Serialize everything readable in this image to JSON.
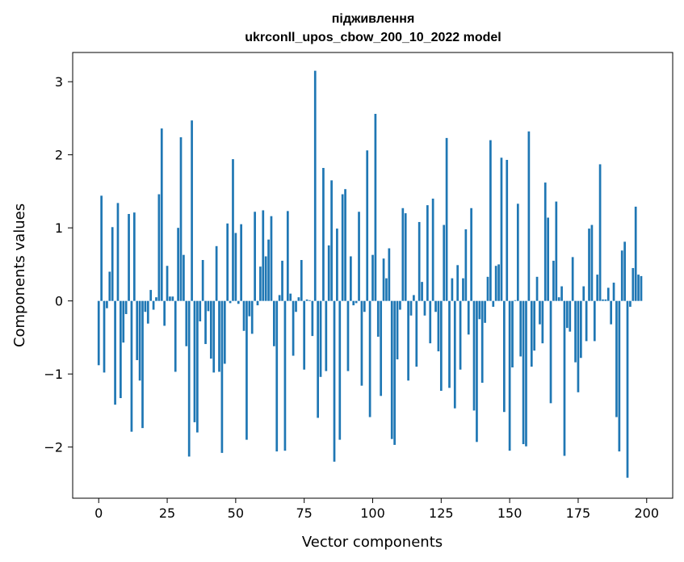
{
  "chart_data": {
    "type": "bar",
    "title_line1": "підживлення",
    "title_line2": "ukrconll_upos_cbow_200_10_2022 model",
    "xlabel": "Vector components",
    "ylabel": "Components values",
    "xlim": [
      -9.5,
      209.5
    ],
    "ylim": [
      -2.7,
      3.4
    ],
    "xticks": [
      0,
      25,
      50,
      75,
      100,
      125,
      150,
      175,
      200
    ],
    "yticks": [
      -2,
      -1,
      0,
      1,
      2,
      3
    ],
    "ytick_labels": [
      "−2",
      "−1",
      "0",
      "1",
      "2",
      "3"
    ],
    "grid": false,
    "bar_color": "#1f77b4",
    "values": [
      -0.88,
      1.44,
      -0.98,
      -0.1,
      0.4,
      1.01,
      -1.42,
      1.34,
      -1.33,
      -0.57,
      -0.18,
      1.19,
      -1.79,
      1.21,
      -0.81,
      -1.09,
      -1.74,
      -0.15,
      -0.31,
      0.15,
      -0.12,
      0.05,
      1.46,
      2.36,
      -0.34,
      0.48,
      0.06,
      0.06,
      -0.97,
      1.0,
      2.24,
      0.63,
      -0.62,
      -2.13,
      2.47,
      -1.66,
      -1.8,
      -0.28,
      0.56,
      -0.59,
      -0.14,
      -0.79,
      -0.98,
      0.75,
      -0.97,
      -2.08,
      -0.86,
      1.06,
      -0.03,
      1.94,
      0.93,
      -0.04,
      1.05,
      -0.41,
      -1.9,
      -0.21,
      -0.45,
      1.22,
      -0.06,
      0.47,
      1.24,
      0.61,
      0.84,
      1.16,
      -0.62,
      -2.06,
      0.08,
      0.55,
      -2.05,
      1.23,
      0.1,
      -0.75,
      -0.15,
      0.05,
      0.56,
      -0.94,
      0.02,
      0.01,
      -0.48,
      3.15,
      -1.6,
      -1.04,
      1.82,
      -0.96,
      0.76,
      1.65,
      -2.2,
      0.99,
      -1.9,
      1.46,
      1.53,
      -0.96,
      0.61,
      -0.06,
      -0.03,
      1.22,
      -1.16,
      -0.15,
      2.06,
      -1.59,
      0.63,
      2.56,
      -0.49,
      -1.3,
      0.58,
      0.31,
      0.72,
      -1.89,
      -1.97,
      -0.8,
      -0.12,
      1.27,
      1.2,
      -1.09,
      -0.2,
      0.08,
      -0.9,
      1.08,
      0.26,
      -0.2,
      1.31,
      -0.58,
      1.4,
      -0.15,
      -0.69,
      -1.23,
      1.04,
      2.23,
      -1.19,
      0.31,
      -1.47,
      0.49,
      -0.94,
      0.31,
      0.98,
      -0.46,
      1.27,
      -1.5,
      -1.93,
      -0.25,
      -1.12,
      -0.3,
      0.33,
      2.2,
      -0.08,
      0.48,
      0.5,
      1.96,
      -1.52,
      1.93,
      -2.05,
      -0.91,
      0.01,
      1.33,
      -0.76,
      -1.96,
      -1.99,
      2.32,
      -0.9,
      -0.68,
      0.33,
      -0.32,
      -0.58,
      1.62,
      1.14,
      -1.4,
      0.55,
      1.36,
      0.05,
      0.2,
      -2.12,
      -0.37,
      -0.42,
      0.6,
      -0.84,
      -1.25,
      -0.78,
      0.2,
      -0.55,
      0.99,
      1.04,
      -0.55,
      0.36,
      1.87,
      0.02,
      0.02,
      0.18,
      -0.32,
      0.25,
      -1.59,
      -2.06,
      0.69,
      0.81,
      -2.42,
      -0.08,
      0.45,
      1.29,
      0.36,
      0.34,
      0.0
    ]
  }
}
